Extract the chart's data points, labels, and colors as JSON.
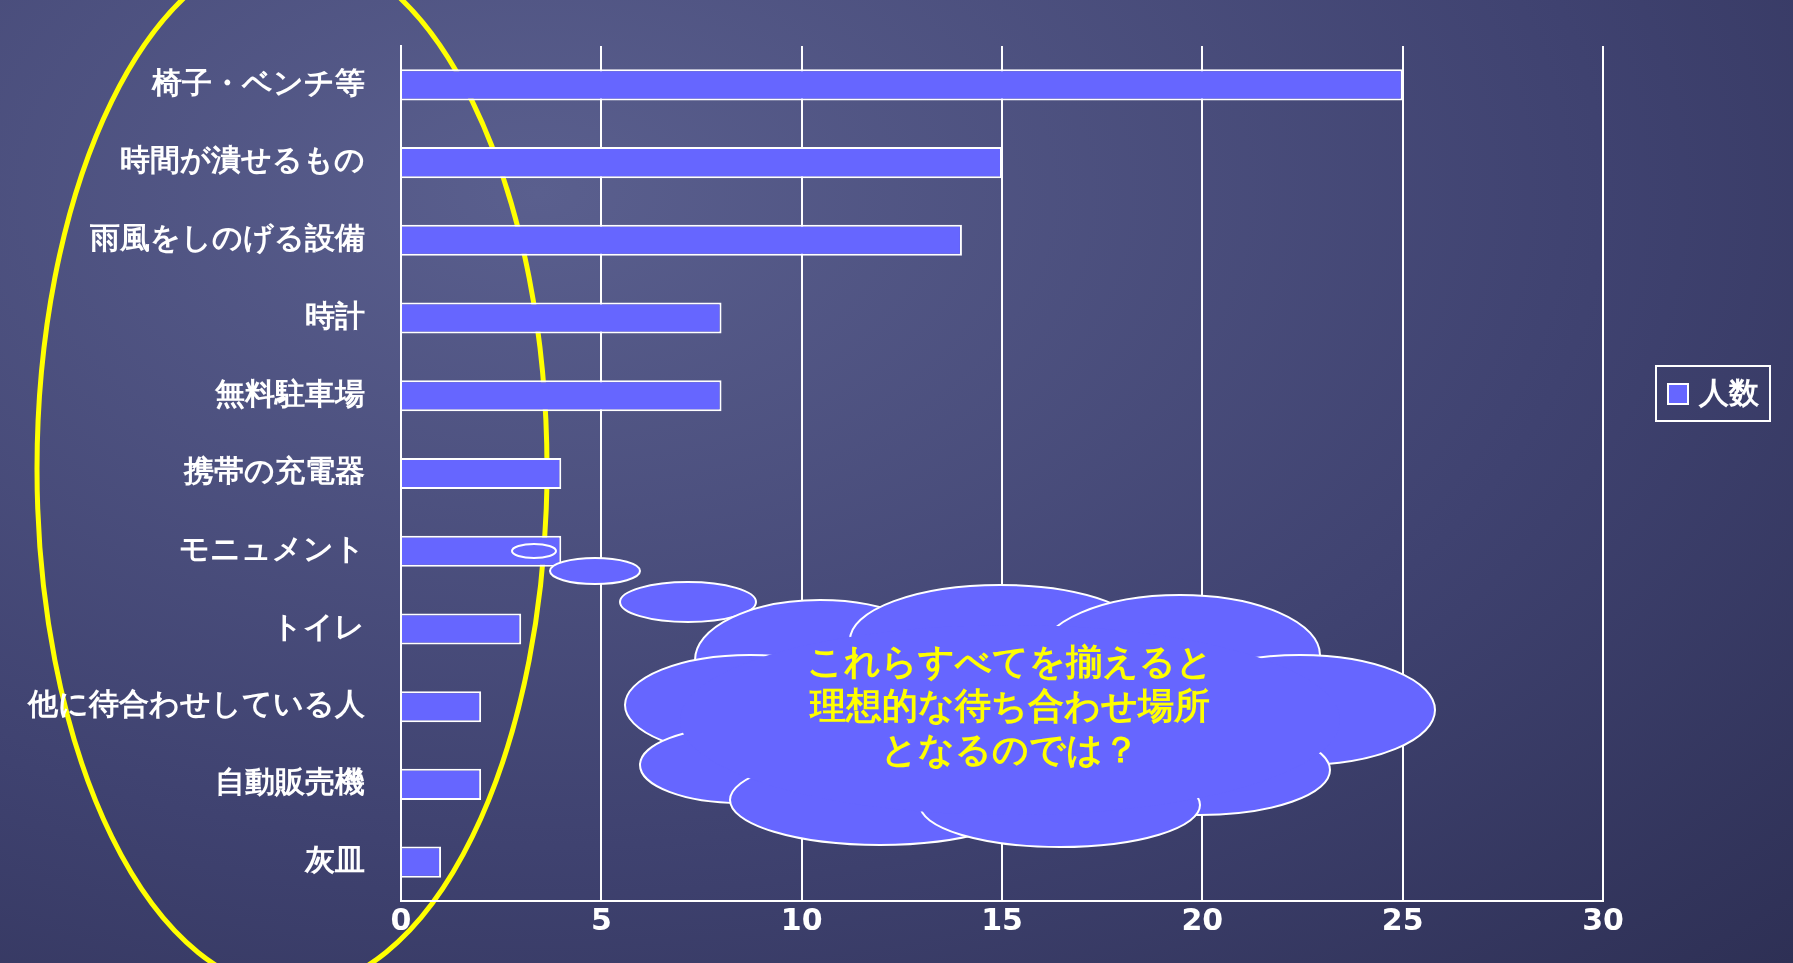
{
  "chart_data": {
    "type": "bar",
    "orientation": "horizontal",
    "categories": [
      "椅子・ベンチ等",
      "時間が潰せるもの",
      "雨風をしのげる設備",
      "時計",
      "無料駐車場",
      "携帯の充電器",
      "モニュメント",
      "トイレ",
      "他に待合わせしている人",
      "自動販売機",
      "灰皿"
    ],
    "series": [
      {
        "name": "人数",
        "color": "#6666ff",
        "values": [
          25,
          15,
          14,
          8,
          8,
          4,
          4,
          3,
          2,
          2,
          1
        ]
      }
    ],
    "xlim": [
      0,
      30
    ],
    "xticks": [
      0,
      5,
      10,
      15,
      20,
      25,
      30
    ],
    "grid": "x",
    "legend": "right",
    "annotations": [
      "これらすべてを揃えると",
      "理想的な待ち合わせ場所",
      "となるのでは？"
    ]
  }
}
